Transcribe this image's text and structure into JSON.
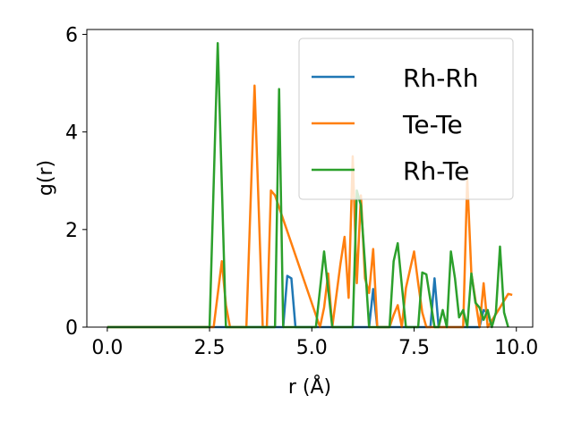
{
  "chart_data": {
    "type": "line",
    "title": "",
    "xlabel": "r (Å)",
    "ylabel": "g(r)",
    "xlim": [
      -0.5,
      10.4
    ],
    "ylim": [
      0,
      6.1
    ],
    "xticks": [
      0.0,
      2.5,
      5.0,
      7.5,
      10.0
    ],
    "xtick_labels": [
      "0.0",
      "2.5",
      "5.0",
      "7.5",
      "10.0"
    ],
    "yticks": [
      0,
      2,
      4,
      6
    ],
    "ytick_labels": [
      "0",
      "2",
      "4",
      "6"
    ],
    "grid": false,
    "legend_position": "top-right",
    "series": [
      {
        "name": "Rh-Rh",
        "color": "#1f77b4",
        "x": [
          0.0,
          4.3,
          4.4,
          4.5,
          4.6,
          4.7,
          6.4,
          6.5,
          6.6,
          7.9,
          8.0,
          8.1,
          9.1,
          9.2,
          9.3,
          9.4
        ],
        "y": [
          0,
          0,
          1.05,
          1.0,
          0,
          0,
          0,
          0.78,
          0,
          0,
          1.0,
          0,
          0,
          0.35,
          0.3,
          0
        ]
      },
      {
        "name": "Te-Te",
        "color": "#ff7f0e",
        "x": [
          0.0,
          2.6,
          2.8,
          2.9,
          3.0,
          3.4,
          3.6,
          3.8,
          3.9,
          4.0,
          4.1,
          5.2,
          5.3,
          5.4,
          5.5,
          5.7,
          5.8,
          5.9,
          6.0,
          6.1,
          6.2,
          6.3,
          6.4,
          6.5,
          6.6,
          6.9,
          7.0,
          7.1,
          7.2,
          7.3,
          7.5,
          7.6,
          7.7,
          7.8,
          8.7,
          8.8,
          8.9,
          9.1,
          9.2,
          9.3,
          9.6,
          9.8,
          9.9
        ],
        "y": [
          0,
          0,
          1.35,
          0.45,
          0,
          0,
          4.95,
          0,
          0,
          2.8,
          2.7,
          0,
          0.4,
          1.1,
          0,
          1.3,
          1.85,
          0.6,
          3.5,
          0.9,
          2.7,
          1.0,
          0.7,
          1.6,
          0,
          0,
          0.25,
          0.45,
          0,
          0.8,
          1.55,
          0.9,
          0.3,
          0,
          0,
          3.05,
          1.1,
          0,
          0.9,
          0,
          0.4,
          0.68,
          0.66
        ]
      },
      {
        "name": "Rh-Te",
        "color": "#2ca02c",
        "x": [
          0.0,
          2.5,
          2.7,
          2.9,
          4.1,
          4.2,
          4.3,
          5.1,
          5.3,
          5.5,
          6.0,
          6.1,
          6.2,
          6.3,
          6.4,
          6.9,
          7.0,
          7.1,
          7.3,
          7.6,
          7.7,
          7.8,
          8.0,
          8.1,
          8.2,
          8.3,
          8.4,
          8.5,
          8.6,
          8.7,
          8.8,
          8.9,
          9.0,
          9.1,
          9.2,
          9.3,
          9.4,
          9.5,
          9.6,
          9.7,
          9.8
        ],
        "y": [
          0,
          0,
          5.82,
          0,
          0,
          4.88,
          0,
          0,
          1.55,
          0,
          0,
          2.8,
          2.5,
          1.3,
          0,
          0,
          1.35,
          1.72,
          0,
          0,
          1.12,
          1.08,
          0,
          0,
          0.35,
          0,
          1.55,
          1.0,
          0.2,
          0.35,
          0,
          1.1,
          0.5,
          0.4,
          0.15,
          0.35,
          0,
          0.3,
          1.65,
          0.3,
          0
        ]
      }
    ]
  }
}
